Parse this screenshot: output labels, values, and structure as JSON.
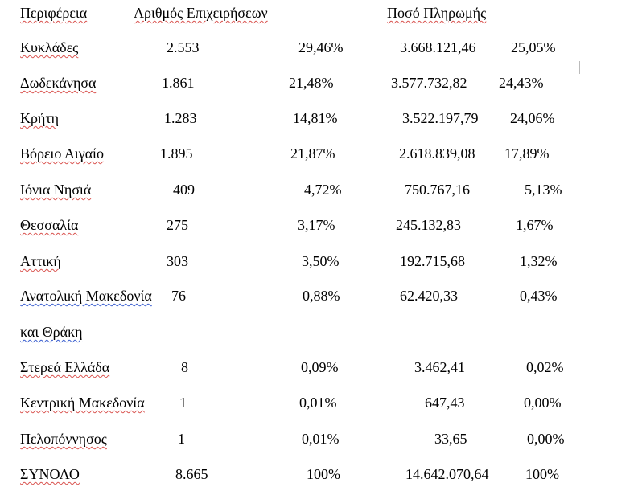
{
  "headers": {
    "region": "Περιφέρεια",
    "businesses": "Αριθμός Επιχειρήσεων",
    "payment": "Ποσό Πληρωμής"
  },
  "rows": [
    {
      "region": "Κυκλάδες",
      "count": "2.553",
      "count_pct": "29,46%",
      "amount": "3.668.121,46",
      "amount_pct": "25,05%"
    },
    {
      "region": "Δωδεκάνησα",
      "count": "1.861",
      "count_pct": "21,48%",
      "amount": "3.577.732,82",
      "amount_pct": "24,43%"
    },
    {
      "region": "Κρήτη",
      "count": "1.283",
      "count_pct": "14,81%",
      "amount": "3.522.197,79",
      "amount_pct": "24,06%"
    },
    {
      "region": "Βόρειο Αιγαίο",
      "count": "1.895",
      "count_pct": "21,87%",
      "amount": "2.618.839,08",
      "amount_pct": "17,89%"
    },
    {
      "region": "Ιόνια Νησιά",
      "count": "409",
      "count_pct": "4,72%",
      "amount": "750.767,16",
      "amount_pct": "5,13%"
    },
    {
      "region": "Θεσσαλία",
      "count": "275",
      "count_pct": "3,17%",
      "amount": "245.132,83",
      "amount_pct": "1,67%"
    },
    {
      "region": "Αττική",
      "count": "303",
      "count_pct": "3,50%",
      "amount": "192.715,68",
      "amount_pct": "1,32%"
    },
    {
      "region": "Ανατολική Μακεδονία",
      "region_cont": "και Θράκη",
      "count": "76",
      "count_pct": "0,88%",
      "amount": "62.420,33",
      "amount_pct": "0,43%"
    },
    {
      "region": "Στερεά Ελλάδα",
      "count": "8",
      "count_pct": "0,09%",
      "amount": "3.462,41",
      "amount_pct": "0,02%"
    },
    {
      "region": "Κεντρική Μακεδονία",
      "count": "1",
      "count_pct": "0,01%",
      "amount": "647,43",
      "amount_pct": "0,00%"
    },
    {
      "region": "Πελοπόννησος",
      "count": "1",
      "count_pct": "0,01%",
      "amount": "33,65",
      "amount_pct": "0,00%"
    }
  ],
  "total": {
    "label": "ΣΥΝΟΛΟ",
    "count": "8.665",
    "count_pct": "100%",
    "amount": "14.642.070,64",
    "amount_pct": "100%"
  }
}
